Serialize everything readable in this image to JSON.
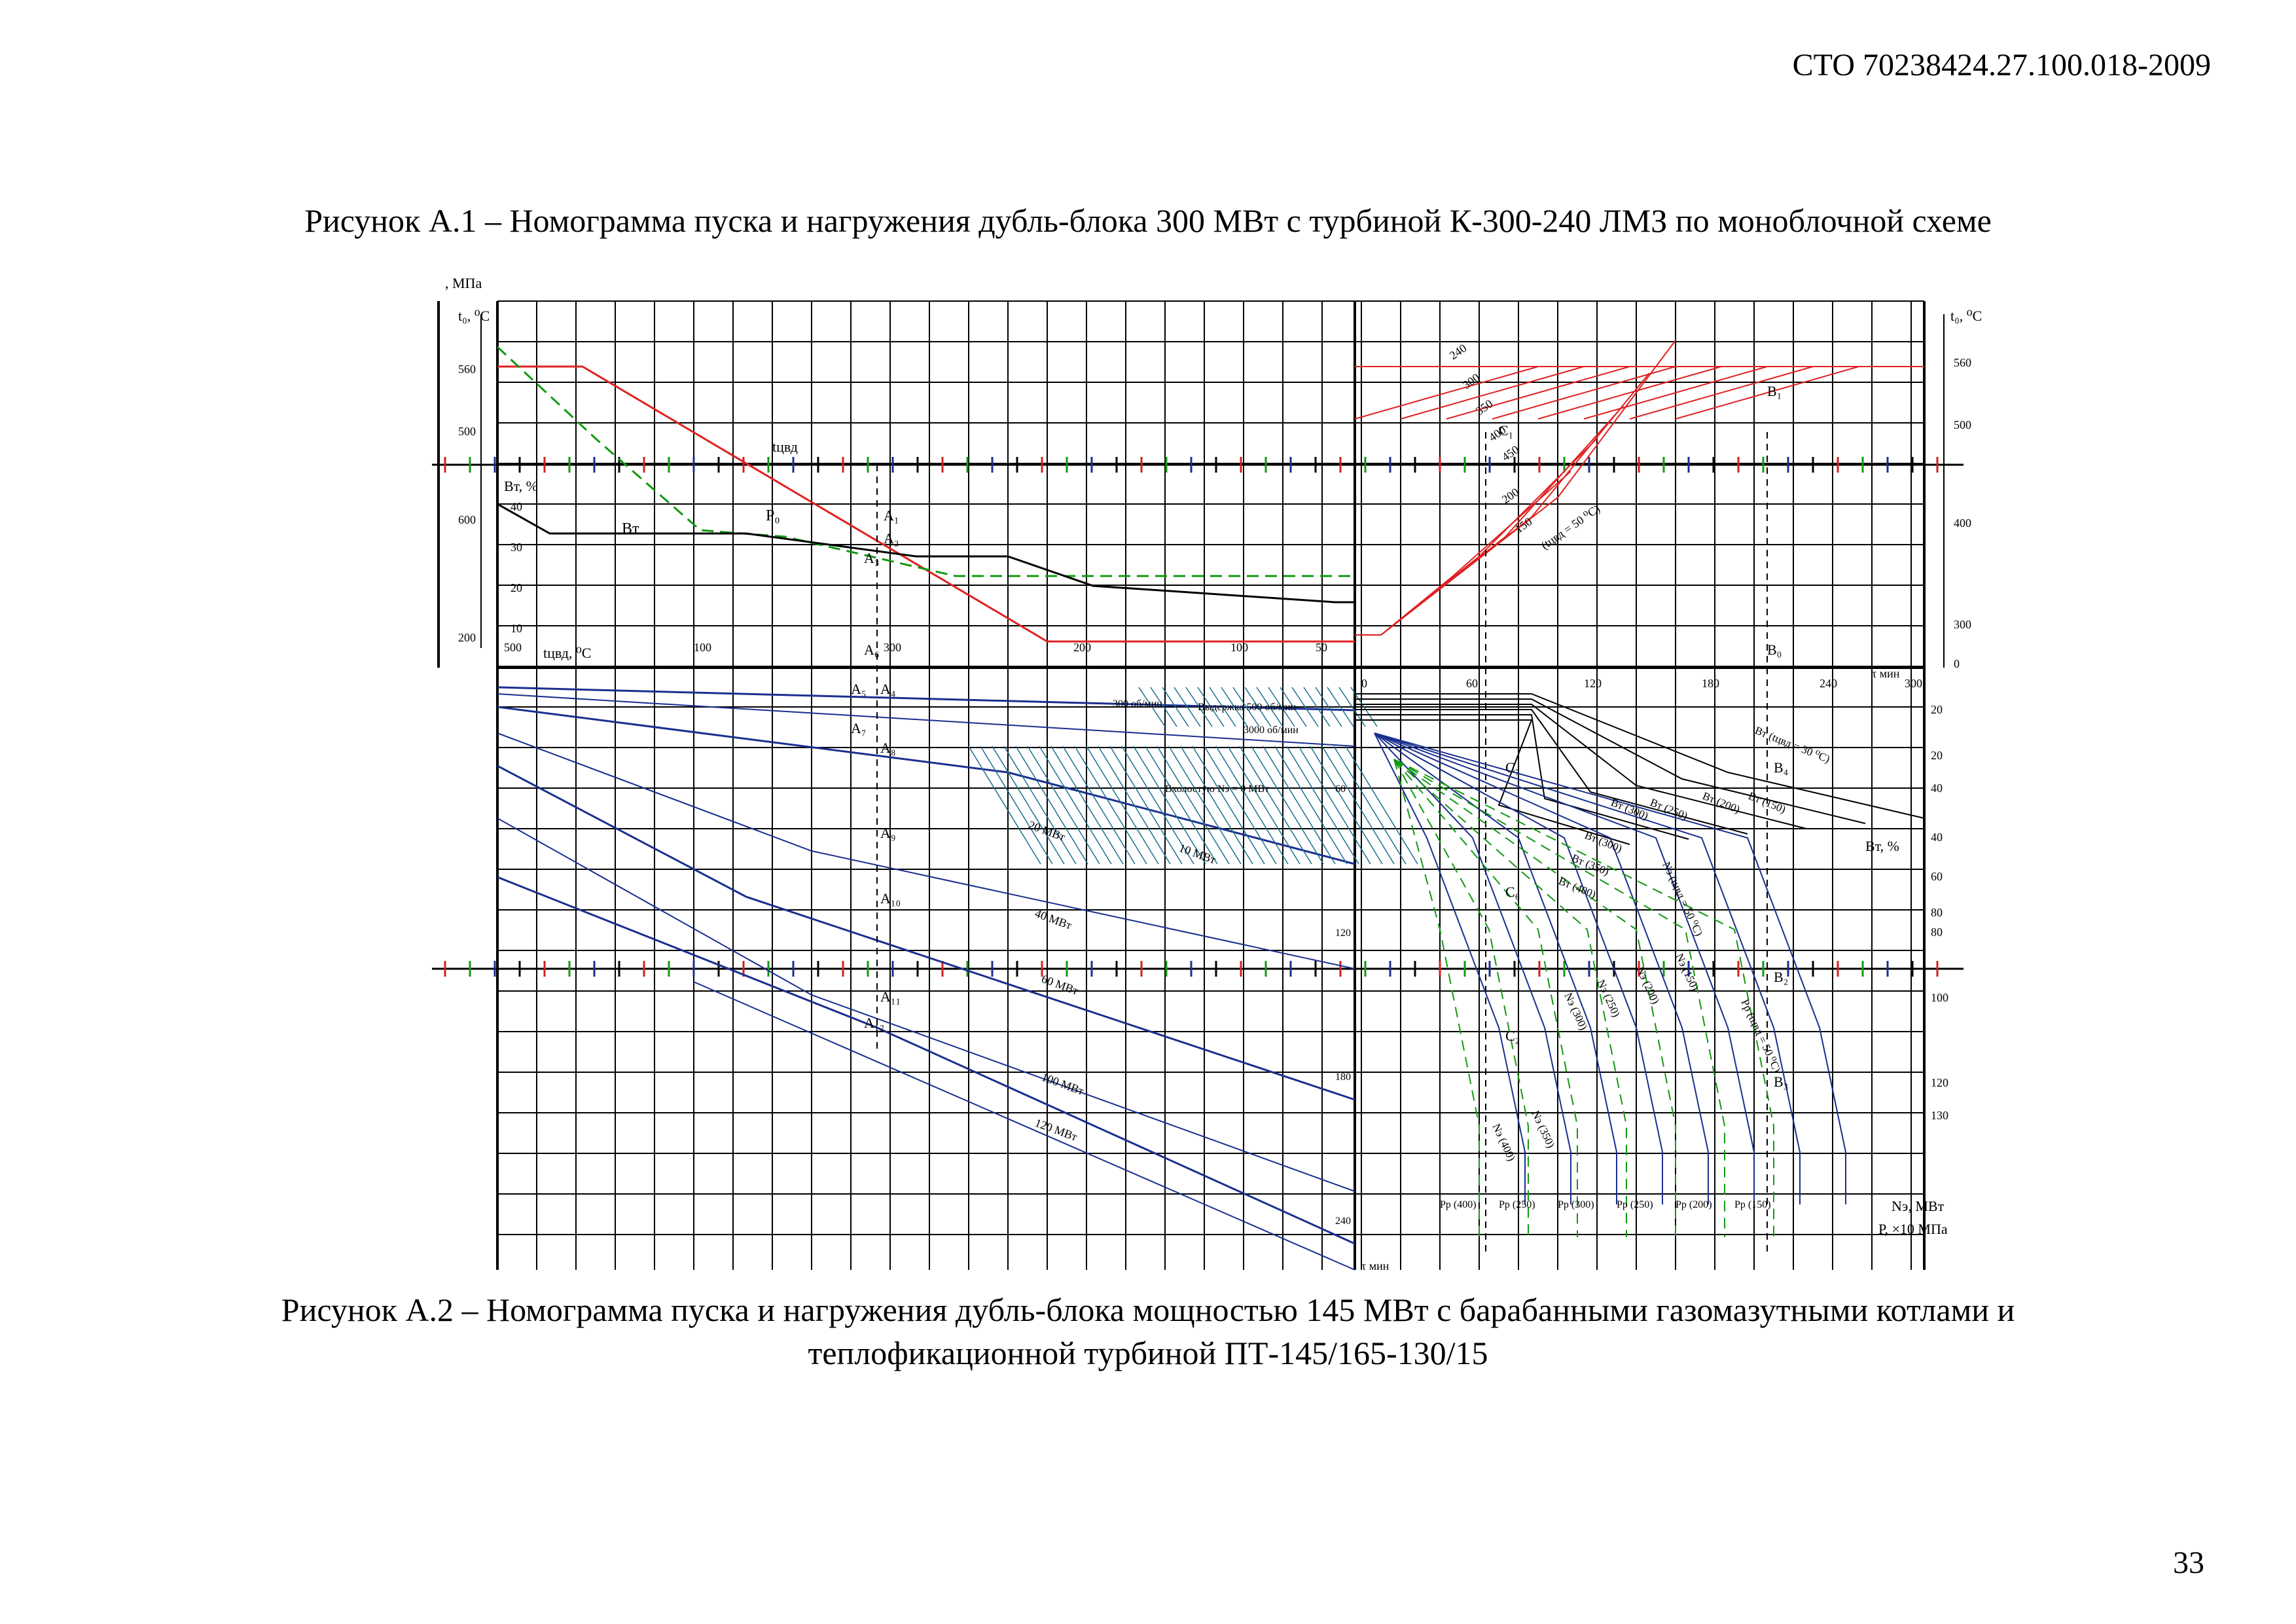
{
  "header": {
    "document_code": "СТО 70238424.27.100.018-2009"
  },
  "figure_a1": {
    "caption": "Рисунок А.1 – Номограмма пуска и нагружения дубль-блока 300 МВт с турбиной К-300-240 ЛМЗ по моноблочной схеме"
  },
  "figure_a2": {
    "caption_line1": "Рисунок А.2 – Номограмма пуска и нагружения дубль-блока мощностью 145 МВт с барабанными газомазутными котлами и",
    "caption_line2": "теплофикационной турбиной ПТ-145/165-130/15"
  },
  "nomogram": {
    "colors": {
      "grid": "#000000",
      "temperature": "#e02020",
      "pressure": "#119911",
      "load": "#1a2f8f",
      "hatch": "#1a6f8f"
    },
    "left_axis": {
      "mpa_label": ", МПа",
      "t0_label": "t₀, ⁰С",
      "t0_ticks": [
        "560",
        "500"
      ],
      "bt_label": "Вт, %",
      "bt_ticks": [
        "40",
        "30",
        "20",
        "10"
      ],
      "lower_ticks": [
        "600",
        "200"
      ]
    },
    "top_left_scale": {
      "label": "tцвд, ⁰С",
      "ticks": [
        "500",
        "100",
        "300",
        "200",
        "100",
        "50"
      ]
    },
    "curve_labels_left": {
      "tcvd": "tцвд",
      "bt": "Вт",
      "p0": "P₀",
      "load_lines": [
        "20 МВт",
        "10 МВт",
        "40 МВт",
        "60 МВт",
        "100 МВт",
        "120 МВт"
      ],
      "zone_labels": [
        "300 об/мин",
        "Выдержка 500 об/мин",
        "3000 об/мин",
        "Вхолостую Nэ = 0 МВт"
      ]
    },
    "points_left": [
      "A₁",
      "A₂",
      "A₃",
      "A₆",
      "A₅",
      "A₄",
      "A₇",
      "A₈",
      "A₉",
      "A₁₀",
      "A₁₁",
      "A₁₂"
    ],
    "right_axis": {
      "t0_label": "t₀, ⁰С",
      "t0_ticks": [
        "560",
        "500",
        "400",
        "300",
        "0"
      ],
      "bt_ticks": [
        "20",
        "20",
        "40",
        "40",
        "60",
        "80",
        "80",
        "100",
        "120",
        "130"
      ],
      "bt_label": "Вт, %",
      "ne_label": "Nэ, МВт",
      "p_label": "Р, ×10 МПа"
    },
    "time_axis": {
      "label": "τ мин",
      "ticks": [
        "0",
        "60",
        "120",
        "180",
        "240",
        "300"
      ],
      "left_ticks": [
        "60",
        "120",
        "180",
        "240",
        "300"
      ]
    },
    "curve_labels_right": {
      "temps": [
        "240",
        "300",
        "350",
        "400",
        "450",
        "200",
        "150",
        "(tцвд = 50 ⁰С)"
      ],
      "bt_lines": [
        "Вт (tцвд = 30 ⁰С)",
        "Вт (300)",
        "Вт (250)",
        "Вт (200)",
        "Вт (150)",
        "Вт (300)",
        "Вт (350)",
        "Вт (400)"
      ],
      "ne_lines": [
        "Nэ (tцвд = 50 ⁰С)",
        "Nэ (150)",
        "Nэ (200)",
        "Nэ (250)",
        "Nэ (300)",
        "Nэ (350)",
        "Nэ (400)",
        "Pр (tцвд = 50 ⁰С)"
      ],
      "bottom_p": [
        "Pр (400)",
        "Pр (250)",
        "Pр (300)",
        "Pр (250)",
        "Pр (200)",
        "Pр (150)"
      ]
    },
    "points_right": [
      "C₁",
      "B₁",
      "B₀",
      "C₇",
      "B₄",
      "C₆",
      "B₂",
      "C₂",
      "B₃"
    ]
  },
  "footer": {
    "page_number": "33"
  }
}
